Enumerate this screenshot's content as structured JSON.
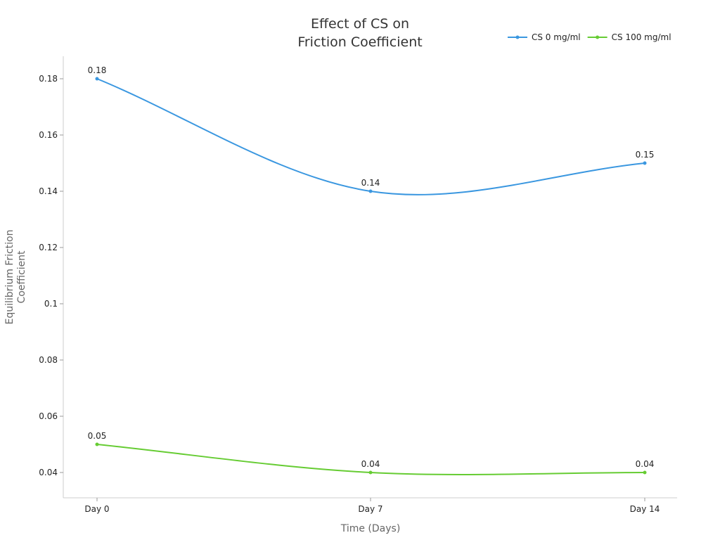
{
  "chart_data": {
    "type": "line",
    "title": [
      "Effect of CS on",
      "Friction Coefficient"
    ],
    "xlabel": "Time (Days)",
    "ylabel": [
      "Equilibrium Friction",
      "Coefficient"
    ],
    "categories": [
      "Day 0",
      "Day 7",
      "Day 14"
    ],
    "ylim": [
      0.031,
      0.188
    ],
    "yticks": [
      0.04,
      0.06,
      0.08,
      0.1,
      0.12,
      0.14,
      0.16,
      0.18
    ],
    "ytick_labels": [
      "0.04",
      "0.06",
      "0.08",
      "0.1",
      "0.12",
      "0.14",
      "0.16",
      "0.18"
    ],
    "grid": false,
    "legend_position": "top-right",
    "smooth": true,
    "series": [
      {
        "name": "CS 0 mg/ml",
        "values": [
          0.18,
          0.14,
          0.15
        ],
        "labels": [
          "0.18",
          "0.14",
          "0.15"
        ],
        "color": "#3a97e0"
      },
      {
        "name": "CS 100 mg/ml",
        "values": [
          0.05,
          0.04,
          0.04
        ],
        "labels": [
          "0.05",
          "0.04",
          "0.04"
        ],
        "color": "#66cc33"
      }
    ]
  }
}
